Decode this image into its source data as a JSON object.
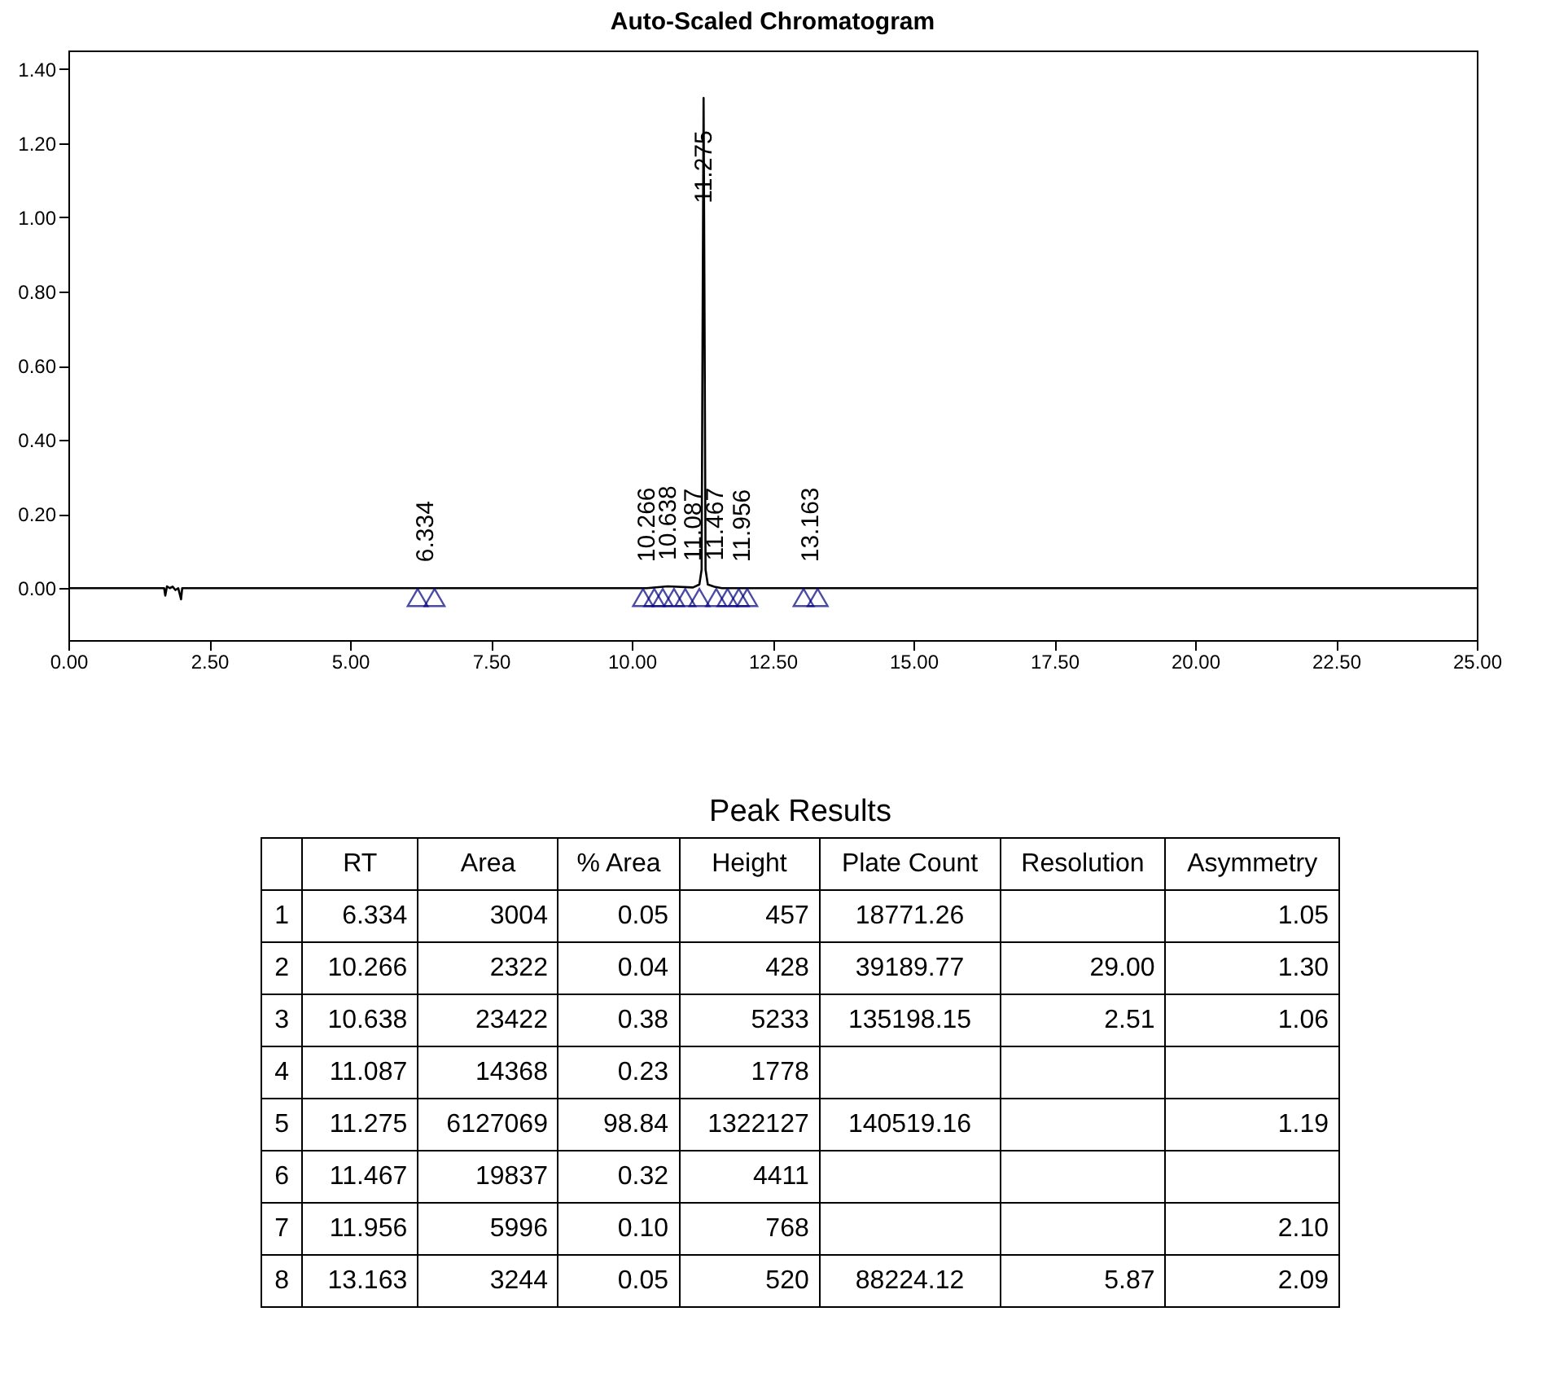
{
  "chart_data": {
    "type": "line",
    "title": "Auto-Scaled Chromatogram",
    "xlim": [
      0,
      25
    ],
    "ylim": [
      -0.14,
      1.45
    ],
    "xticks": [
      {
        "value": 0,
        "label": "0.00"
      },
      {
        "value": 2.5,
        "label": "2.50"
      },
      {
        "value": 5,
        "label": "5.00"
      },
      {
        "value": 7.5,
        "label": "7.50"
      },
      {
        "value": 10,
        "label": "10.00"
      },
      {
        "value": 12.5,
        "label": "12.50"
      },
      {
        "value": 15,
        "label": "15.00"
      },
      {
        "value": 17.5,
        "label": "17.50"
      },
      {
        "value": 20,
        "label": "20.00"
      },
      {
        "value": 22.5,
        "label": "22.50"
      },
      {
        "value": 25,
        "label": "25.00"
      }
    ],
    "yticks": [
      {
        "value": 0,
        "label": "0.00"
      },
      {
        "value": 0.2,
        "label": "0.20"
      },
      {
        "value": 0.4,
        "label": "0.40"
      },
      {
        "value": 0.6,
        "label": "0.60"
      },
      {
        "value": 0.8,
        "label": "0.80"
      },
      {
        "value": 1,
        "label": "1.00"
      },
      {
        "value": 1.2,
        "label": "1.20"
      },
      {
        "value": 1.4,
        "label": "1.40"
      }
    ],
    "grid": false,
    "series": [
      {
        "type": "line",
        "color": "#000000",
        "line_style": "solid",
        "x": [
          0,
          1.7,
          1.72,
          1.75,
          1.8,
          1.85,
          1.9,
          1.95,
          2.0,
          2.02,
          2.1,
          6.2,
          6.334,
          6.5,
          10.2,
          10.266,
          10.638,
          11.087,
          11.2,
          11.24,
          11.26,
          11.275,
          11.29,
          11.31,
          11.35,
          11.467,
          11.6,
          11.956,
          13.163,
          25
        ],
        "values": [
          0,
          0,
          -0.02,
          0.005,
          0,
          0.004,
          -0.005,
          0,
          -0.03,
          0,
          0,
          0,
          0,
          0,
          0,
          0,
          0.005,
          0.002,
          0.01,
          0.05,
          0.8,
          1.322,
          0.8,
          0.05,
          0.01,
          0.004,
          0,
          0,
          0,
          0
        ]
      },
      {
        "type": "scatter",
        "color": "#000080",
        "marker": "triangle",
        "x": [
          6.2,
          6.5,
          10.2,
          10.4,
          10.55,
          10.75,
          10.95,
          11.2,
          11.5,
          11.7,
          11.9,
          12.05,
          13.05,
          13.3
        ],
        "values": [
          -0.025,
          -0.025,
          -0.025,
          -0.025,
          -0.025,
          -0.025,
          -0.025,
          -0.025,
          -0.025,
          -0.025,
          -0.025,
          -0.025,
          -0.025,
          -0.025
        ]
      }
    ],
    "annotations": [
      {
        "text": "6.334",
        "x": 6.334,
        "y": 0
      },
      {
        "text": "10.266",
        "x": 10.266,
        "y": 0
      },
      {
        "text": "10.638",
        "x": 10.638,
        "y": 0.005
      },
      {
        "text": "11.087",
        "x": 11.087,
        "y": 0.002
      },
      {
        "text": "11.275",
        "x": 11.275,
        "y": 1.322
      },
      {
        "text": "11.467",
        "x": 11.467,
        "y": 0.004
      },
      {
        "text": "11.956",
        "x": 11.956,
        "y": 0
      },
      {
        "text": "13.163",
        "x": 13.163,
        "y": 0
      },
      "Peak Results",
      "RT",
      "Area",
      "% Area",
      "Height",
      "Plate Count",
      "Resolution",
      "Asymmetry",
      "1",
      "6.334",
      "3004",
      "0.05",
      "457",
      "18771.26",
      null,
      "1.05",
      "2",
      "10.266",
      "2322",
      "0.04",
      "428",
      "39189.77",
      "29.00",
      "1.30",
      "3",
      "10.638",
      "23422",
      "0.38",
      "5233",
      "135198.15",
      "2.51",
      "1.06",
      "4",
      "11.087",
      "14368",
      "0.23",
      "1778",
      null,
      null,
      null,
      "5",
      "11.275",
      "6127069",
      "98.84",
      "1322127",
      "140519.16",
      null,
      "1.19",
      "6",
      "11.467",
      "19837",
      "0.32",
      "4411",
      null,
      null,
      null,
      "7",
      "11.956",
      "5996",
      "0.10",
      "768",
      null,
      null,
      "2.10",
      "8",
      "13.163",
      "3244",
      "0.05",
      "520",
      "88224.12",
      "5.87",
      "2.09"
    ]
  }
}
